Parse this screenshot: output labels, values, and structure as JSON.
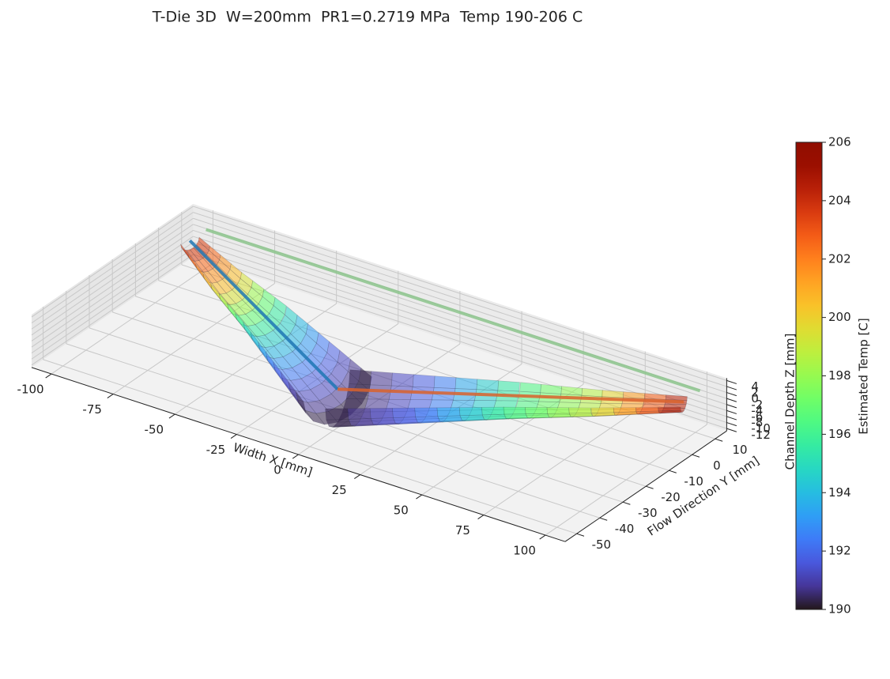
{
  "chart_data": {
    "type": "channel3d",
    "title": "T-Die 3D  W=200mm  PR1=0.2719 MPa  Temp 190-206 C",
    "xlabel": "Width X [mm]",
    "ylabel": "Flow Direction Y [mm]",
    "zlabel": "Channel Depth Z [mm]",
    "xlim": [
      -108,
      108
    ],
    "ylim": [
      -55,
      15
    ],
    "zlim": [
      -12.8,
      4.8
    ],
    "xticks": [
      -100,
      -75,
      -50,
      -25,
      0,
      25,
      50,
      75,
      100
    ],
    "yticks": [
      -50,
      -40,
      -30,
      -20,
      -10,
      0,
      10
    ],
    "zticks": [
      4,
      2,
      0,
      -2,
      -4,
      -6,
      -8,
      -10,
      -12
    ],
    "x": [
      -100,
      -75,
      -50,
      -25,
      0,
      25,
      50,
      75,
      100
    ],
    "y": [
      5,
      -6,
      -16,
      -27,
      -38,
      -27,
      -16,
      -6,
      5
    ],
    "z": [
      -3,
      -5,
      -7,
      -9,
      -11,
      -9,
      -7,
      -5,
      -3
    ],
    "values": [
      204,
      200,
      195,
      192,
      190,
      192,
      196,
      199,
      205
    ],
    "colormap": "turbo",
    "colorbar": {
      "label": "Estimated Temp [C]",
      "lim": [
        190,
        206
      ],
      "ticks": [
        190,
        192,
        194,
        196,
        198,
        200,
        202,
        204,
        206
      ]
    },
    "lines": [
      {
        "color": "#1f77b4",
        "x": [
          -100,
          0
        ],
        "y": [
          5,
          -38
        ]
      },
      {
        "color": "#d9622b",
        "x": [
          0,
          100
        ],
        "y": [
          -38,
          5
        ]
      },
      {
        "color": "#8cc48c",
        "x": [
          -100,
          100
        ],
        "y": [
          12,
          12
        ]
      }
    ]
  }
}
